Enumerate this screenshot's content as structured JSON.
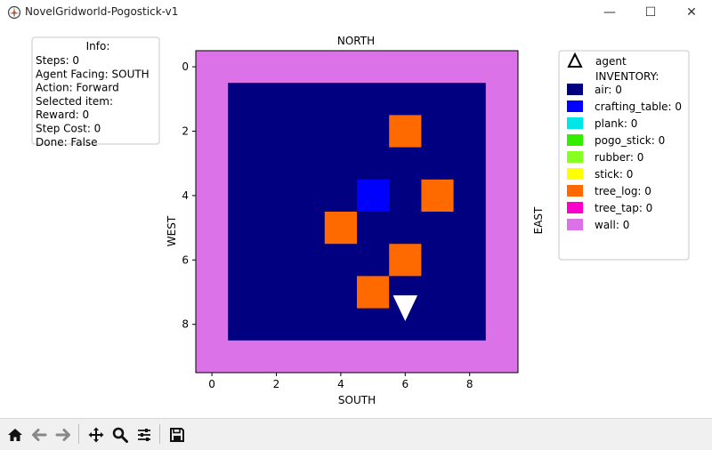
{
  "window": {
    "title": "NovelGridworld-Pogostick-v1",
    "minimize_glyph": "—",
    "maximize_glyph": "☐",
    "close_glyph": "✕"
  },
  "plot": {
    "top_label": "NORTH",
    "bottom_label": "SOUTH",
    "left_label": "WEST",
    "right_label": "EAST",
    "x_ticks": [
      "0",
      "2",
      "4",
      "6",
      "8"
    ],
    "y_ticks": [
      "0",
      "2",
      "4",
      "6",
      "8"
    ],
    "grid_size": 10,
    "colors": {
      "wall": "#dc72e8",
      "air": "#000080",
      "crafting_table": "#0000ff",
      "tree_log": "#ff6a00",
      "agent": "#ffffff"
    },
    "tree_logs": [
      {
        "row": 2,
        "col": 6
      },
      {
        "row": 4,
        "col": 7
      },
      {
        "row": 5,
        "col": 4
      },
      {
        "row": 6,
        "col": 6
      },
      {
        "row": 7,
        "col": 5
      }
    ],
    "crafting_tables": [
      {
        "row": 4,
        "col": 5
      }
    ],
    "agent": {
      "row": 7.5,
      "col": 6,
      "facing": "SOUTH"
    }
  },
  "info": {
    "title": "Info:",
    "lines": [
      "Steps: 0",
      "Agent Facing: SOUTH",
      "Action: Forward",
      "Selected item:",
      "Reward: 0",
      "Step Cost: 0",
      "Done: False"
    ]
  },
  "legend": {
    "agent_label": "agent",
    "inventory_header": "INVENTORY:",
    "items": [
      {
        "label": "air: 0",
        "color": "#000080"
      },
      {
        "label": "crafting_table: 0",
        "color": "#0000ff"
      },
      {
        "label": "plank: 0",
        "color": "#00e5e5"
      },
      {
        "label": "pogo_stick: 0",
        "color": "#33ee00"
      },
      {
        "label": "rubber: 0",
        "color": "#88ff22"
      },
      {
        "label": "stick: 0",
        "color": "#ffff00"
      },
      {
        "label": "tree_log: 0",
        "color": "#ff6a00"
      },
      {
        "label": "tree_tap: 0",
        "color": "#ff00cc"
      },
      {
        "label": "wall: 0",
        "color": "#dc72e8"
      }
    ]
  },
  "toolbar": {
    "buttons": [
      "home-icon",
      "back-arrow-icon",
      "forward-arrow-icon",
      "pan-icon",
      "zoom-icon",
      "configure-subplots-icon",
      "save-icon"
    ]
  }
}
